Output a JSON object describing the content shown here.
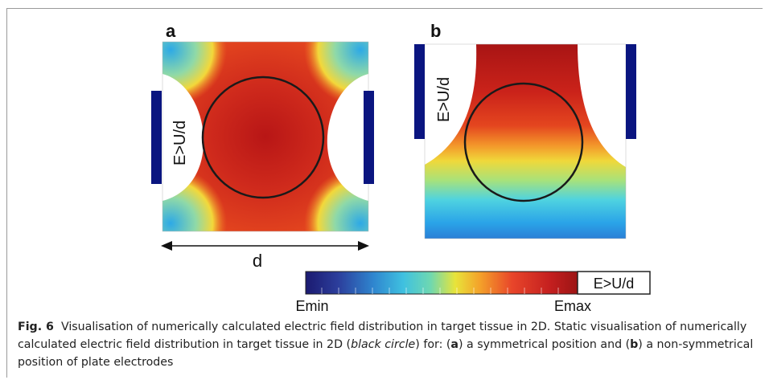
{
  "figure": {
    "panel_a_label": "a",
    "panel_b_label": "b",
    "region_label": "E>U/d",
    "distance_label": "d"
  },
  "colorbar": {
    "min_label": "Emin",
    "max_label": "Emax",
    "threshold_label": "E>U/d"
  },
  "caption": {
    "fig_label": "Fig. 6",
    "title": "Visualisation of numerically calculated electric field distribution in target tissue in 2D.",
    "text_1": "Static visualisation of numerically calculated electric field distribution in target tissue in 2D (",
    "black_circle": "black circle",
    "text_2": ") for: (",
    "a": "a",
    "text_3": ") a symmetrical position and (",
    "b": "b",
    "text_4": ") a non-symmetrical position of plate electrodes"
  },
  "colors": {
    "electrode": "#0a1580",
    "outline": "#1a1a1a"
  }
}
